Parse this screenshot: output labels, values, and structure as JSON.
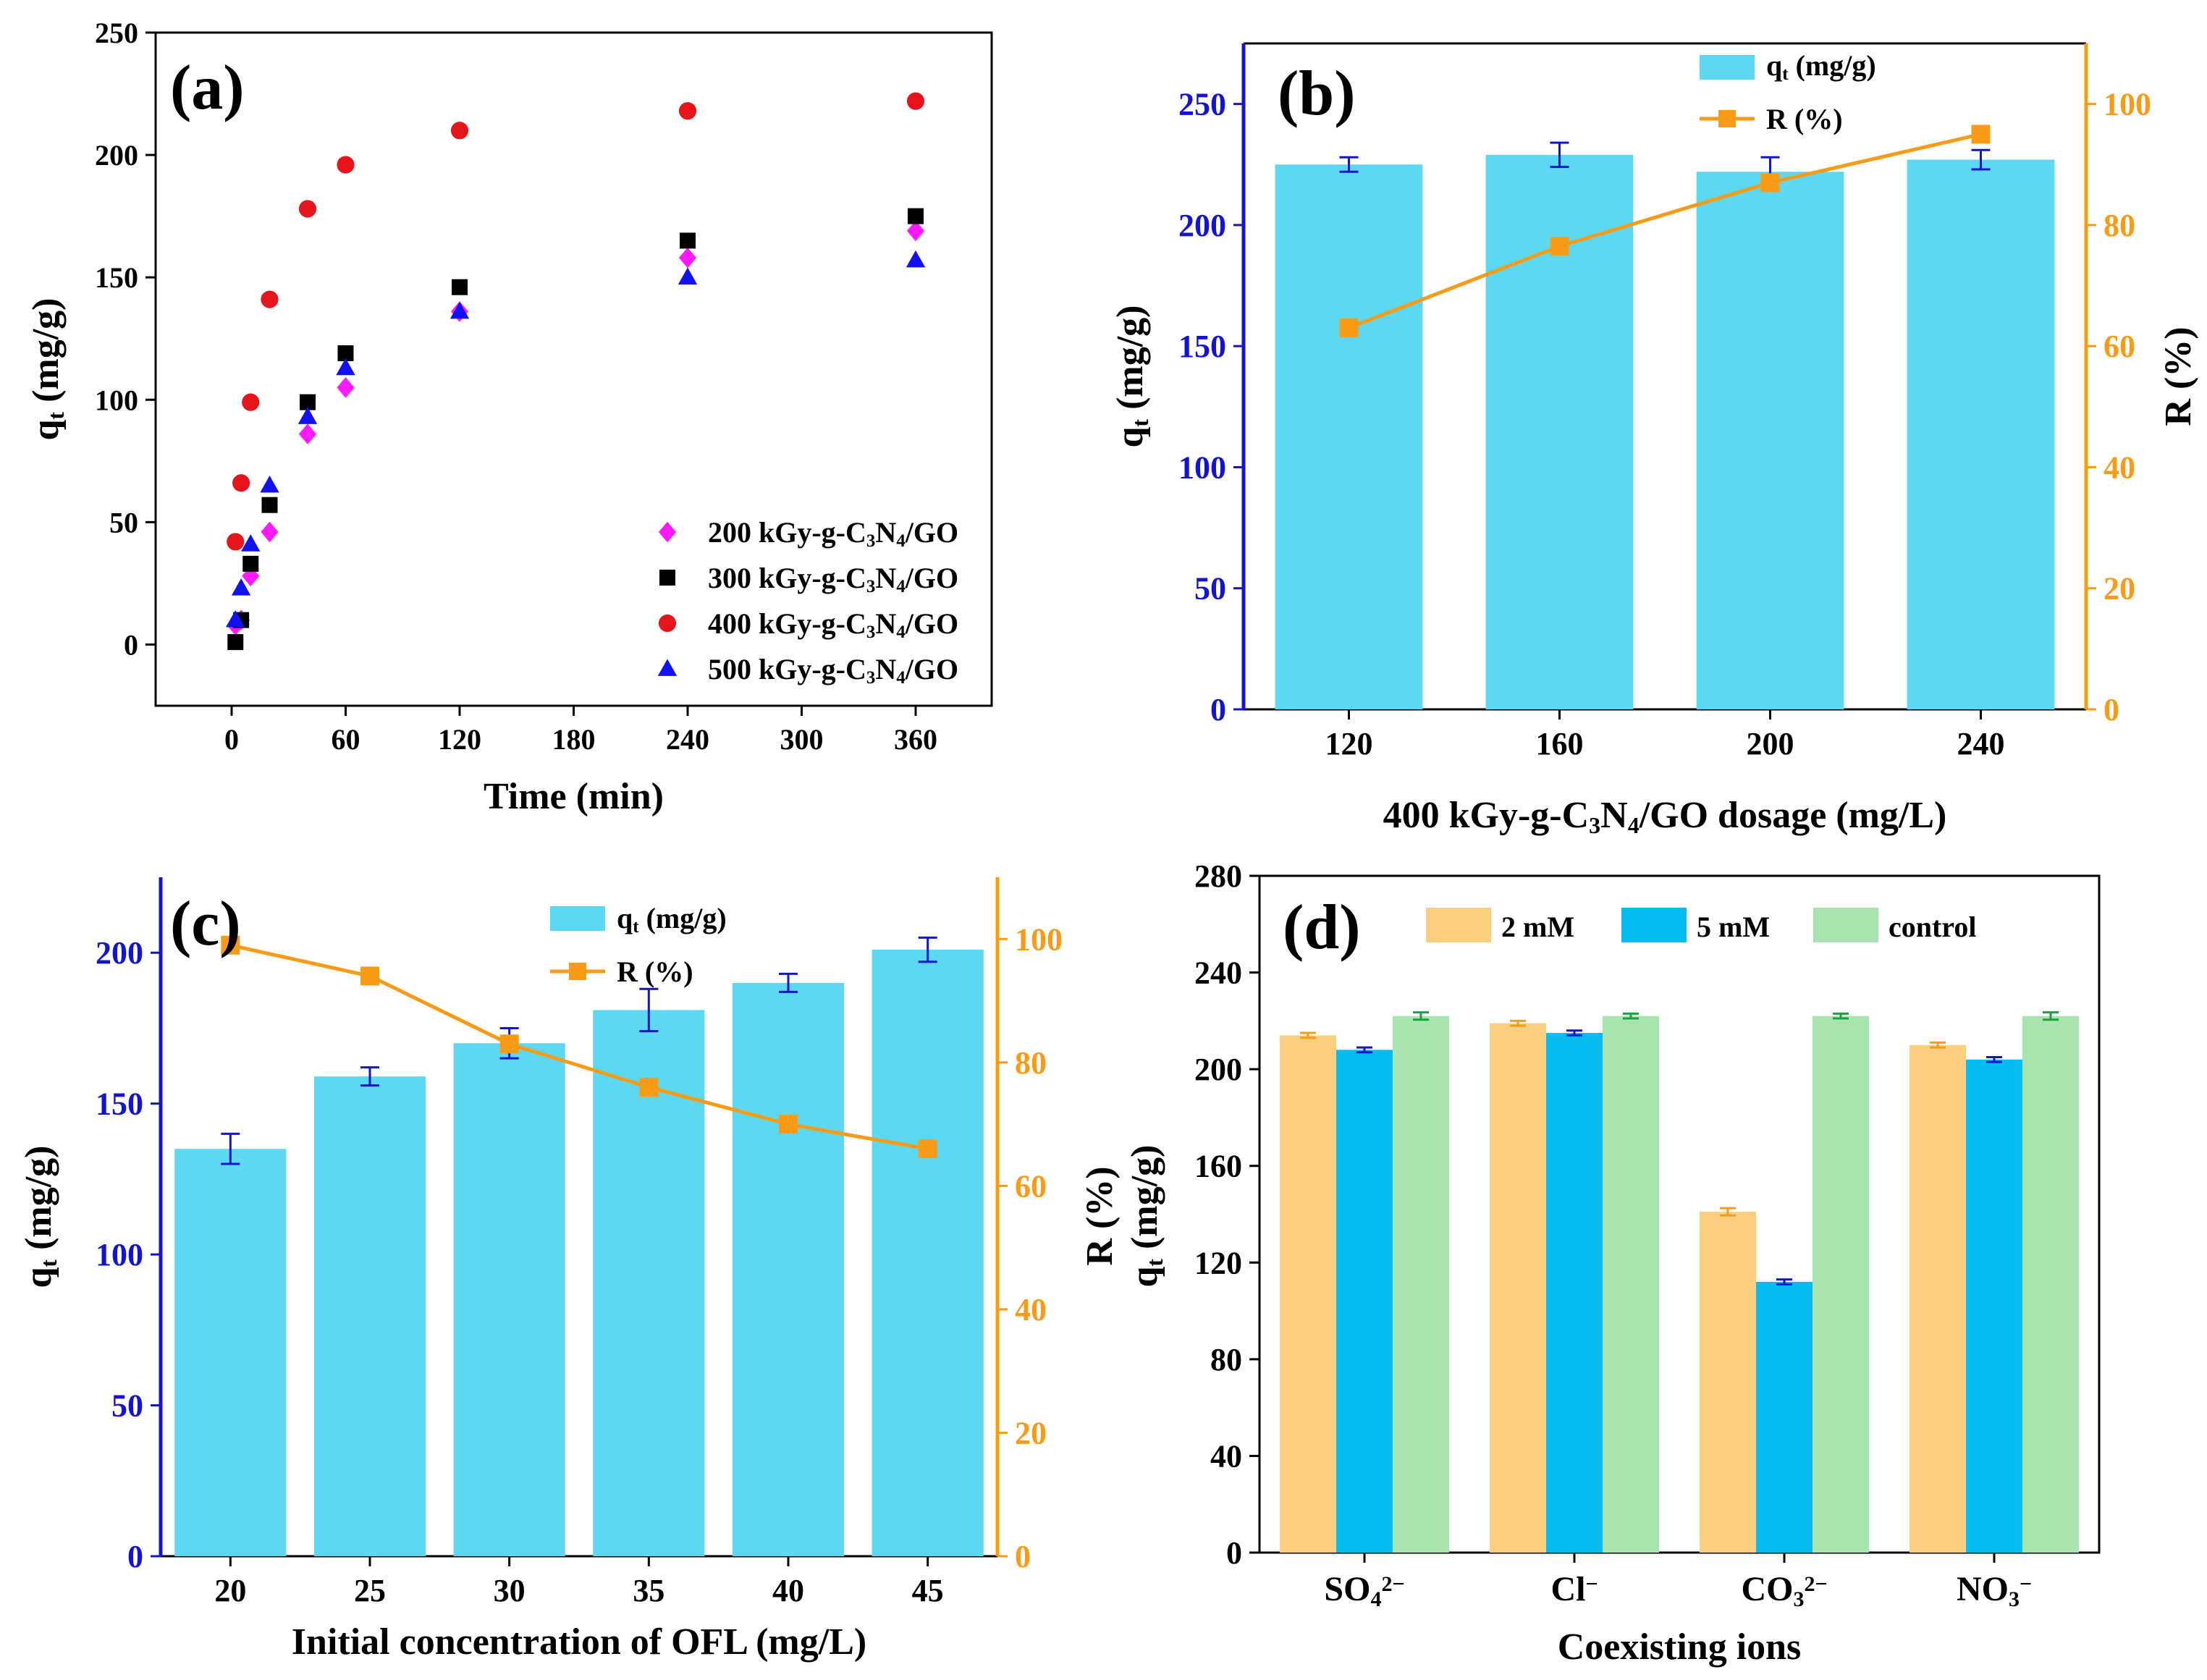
{
  "colors": {
    "bar": "#5dd8f2",
    "line": "#fa9b18",
    "axis_black": "#000000",
    "axis_blue": "#1414d0",
    "axis_orange": "#fa9b18",
    "s200": "#ff1aff",
    "s300": "#000000",
    "s400": "#e8141c",
    "s500": "#1212f0",
    "d2mM": "#fccf80",
    "d5mM": "#05bbef",
    "dcontrol": "#a8e4b0"
  },
  "chart_data": [
    {
      "panel": "(a)",
      "type": "scatter",
      "xlabel": "Time (min)",
      "ylabel": "q",
      "ylabel_sub": "t",
      "ylabel_unit": " (mg/g)",
      "xlim": [
        -40,
        400
      ],
      "ylim": [
        -25,
        250
      ],
      "xticks": [
        0,
        60,
        120,
        180,
        240,
        300,
        360
      ],
      "yticks": [
        0,
        50,
        100,
        150,
        200,
        250
      ],
      "legend_position": "bottom-right",
      "series": [
        {
          "name": "200 kGy-g-C3N4/GO",
          "legend_parts": [
            "200 kGy-g-C",
            "3",
            "N",
            "4",
            "/GO"
          ],
          "marker": "diamond",
          "color_key": "s200",
          "x": [
            2,
            5,
            10,
            20,
            40,
            60,
            120,
            240,
            360
          ],
          "y": [
            8,
            10,
            28,
            46,
            86,
            105,
            136,
            158,
            169
          ]
        },
        {
          "name": "300 kGy-g-C3N4/GO",
          "legend_parts": [
            "300 kGy-g-C",
            "3",
            "N",
            "4",
            "/GO"
          ],
          "marker": "square",
          "color_key": "s300",
          "x": [
            2,
            5,
            10,
            20,
            40,
            60,
            120,
            240,
            360
          ],
          "y": [
            1,
            10,
            33,
            57,
            99,
            119,
            146,
            165,
            175
          ]
        },
        {
          "name": "400 kGy-g-C3N4/GO",
          "legend_parts": [
            "400 kGy-g-C",
            "3",
            "N",
            "4",
            "/GO"
          ],
          "marker": "circle",
          "color_key": "s400",
          "x": [
            2,
            5,
            10,
            20,
            40,
            60,
            120,
            240,
            360
          ],
          "y": [
            42,
            66,
            99,
            141,
            178,
            196,
            210,
            218,
            222
          ]
        },
        {
          "name": "500 kGy-g-C3N4/GO",
          "legend_parts": [
            "500 kGy-g-C",
            "3",
            "N",
            "4",
            "/GO"
          ],
          "marker": "triangle",
          "color_key": "s500",
          "x": [
            2,
            5,
            10,
            20,
            40,
            60,
            120,
            240,
            360
          ],
          "y": [
            10,
            23,
            41,
            65,
            93,
            113,
            136,
            150,
            157
          ]
        }
      ]
    },
    {
      "panel": "(b)",
      "type": "bar",
      "xlabel_parts": [
        "400 kGy-g-C",
        "3",
        "N",
        "4",
        "/GO dosage (mg/L)"
      ],
      "ylabel": "q",
      "ylabel_sub": "t",
      "ylabel_unit": " (mg/g)",
      "y2label": "R (%)",
      "categories": [
        "120",
        "160",
        "200",
        "240"
      ],
      "ylim": [
        0,
        275
      ],
      "yticks": [
        0,
        50,
        100,
        150,
        200,
        250
      ],
      "y2lim": [
        0,
        110
      ],
      "y2ticks": [
        0,
        20,
        40,
        60,
        80,
        100
      ],
      "legend_position": "top-center",
      "bar_series": {
        "name": "qt (mg/g)",
        "legend_main": "q",
        "legend_sub": "t",
        "legend_unit": " (mg/g)",
        "values": [
          225,
          229,
          222,
          227
        ],
        "errors": [
          3,
          5,
          6,
          4
        ]
      },
      "line_series": {
        "name": "R (%)",
        "values": [
          63,
          76.5,
          87,
          95
        ]
      }
    },
    {
      "panel": "(c)",
      "type": "bar",
      "xlabel": "Initial concentration of OFL (mg/L)",
      "ylabel": "q",
      "ylabel_sub": "t",
      "ylabel_unit": " (mg/g)",
      "categories": [
        "20",
        "25",
        "30",
        "35",
        "40",
        "45"
      ],
      "ylim": [
        0,
        225
      ],
      "yticks": [
        0,
        50,
        100,
        150,
        200
      ],
      "y2lim": [
        0,
        110
      ],
      "y2ticks": [
        0,
        20,
        40,
        60,
        80,
        100
      ],
      "legend_position": "top-right",
      "bar_series": {
        "name": "qt (mg/g)",
        "legend_main": "q",
        "legend_sub": "t",
        "legend_unit": " (mg/g)",
        "values": [
          135,
          159,
          170,
          181,
          190,
          201
        ],
        "errors": [
          5,
          3,
          5,
          7,
          3,
          4
        ]
      },
      "line_series": {
        "name": "R (%)",
        "values": [
          99,
          94,
          83,
          76,
          70,
          66
        ]
      }
    },
    {
      "panel": "(d)",
      "type": "bar",
      "xlabel": "Coexisting ions",
      "ylabel_top": "q",
      "ylabel_top_sub": "t",
      "ylabel_top_unit": " (mg/g)",
      "ylabel_bottom": "R (%)",
      "categories": [
        {
          "base": "SO",
          "sub": "4",
          "sup": "2−"
        },
        {
          "base": "Cl",
          "sub": "",
          "sup": "−"
        },
        {
          "base": "CO",
          "sub": "3",
          "sup": "2−"
        },
        {
          "base": "NO",
          "sub": "3",
          "sup": "−"
        }
      ],
      "ylim": [
        0,
        280
      ],
      "yticks": [
        0,
        40,
        80,
        120,
        160,
        200,
        240,
        280
      ],
      "legend_position": "top",
      "series": [
        {
          "name": "2 mM",
          "color_key": "d2mM",
          "values": [
            214,
            219,
            141,
            210
          ],
          "errors": [
            1,
            1,
            1.5,
            1
          ]
        },
        {
          "name": "5 mM",
          "color_key": "d5mM",
          "values": [
            208,
            215,
            112,
            204
          ],
          "errors": [
            1,
            1,
            1,
            1
          ]
        },
        {
          "name": "control",
          "color_key": "dcontrol",
          "values": [
            222,
            222,
            222,
            222
          ],
          "errors": [
            1.5,
            1,
            1,
            1.5
          ]
        }
      ]
    }
  ]
}
